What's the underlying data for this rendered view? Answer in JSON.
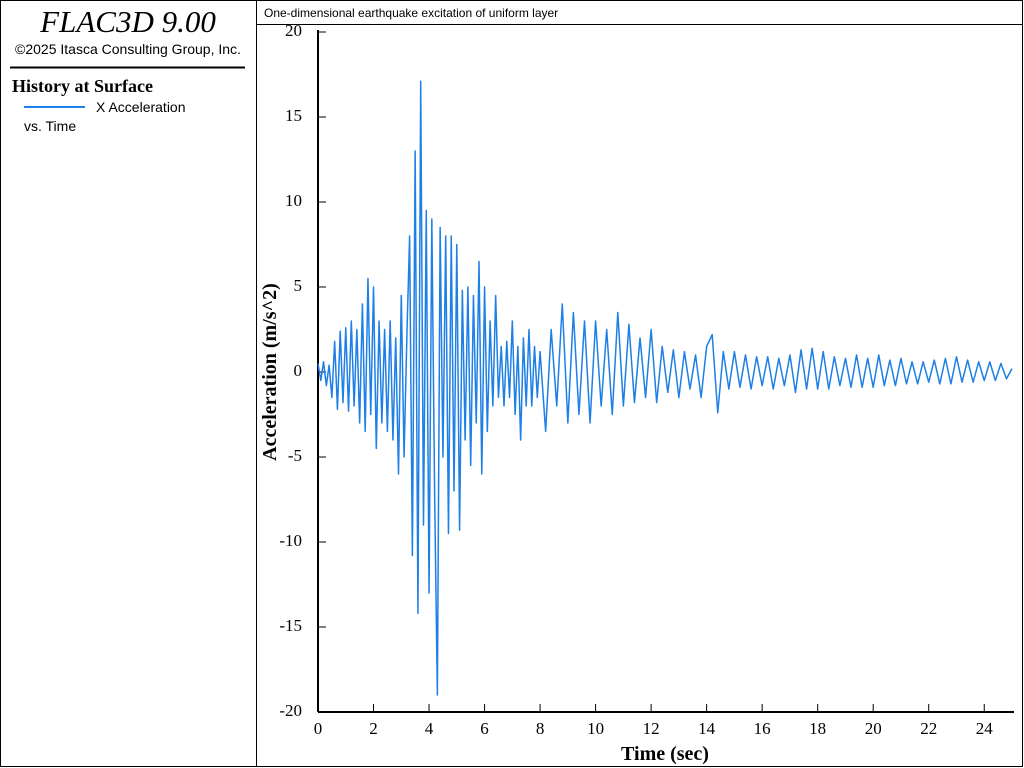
{
  "app": {
    "name": "FLAC3D 9.00",
    "copyright": "©2025 Itasca Consulting Group, Inc.",
    "history_heading": "History at Surface",
    "versus": "vs. Time"
  },
  "chart_data": {
    "type": "line",
    "title": "One-dimensional earthquake excitation of uniform layer",
    "xlabel": "Time (sec)",
    "ylabel": "Acceleration (m/s^2)",
    "x": [
      0,
      0.1,
      0.2,
      0.3,
      0.4,
      0.5,
      0.6,
      0.7,
      0.8,
      0.9,
      1,
      1.1,
      1.2,
      1.3,
      1.4,
      1.5,
      1.6,
      1.7,
      1.8,
      1.9,
      2,
      2.1,
      2.2,
      2.3,
      2.4,
      2.5,
      2.6,
      2.7,
      2.8,
      2.9,
      3,
      3.1,
      3.2,
      3.3,
      3.4,
      3.5,
      3.6,
      3.7,
      3.8,
      3.9,
      4,
      4.1,
      4.2,
      4.3,
      4.4,
      4.5,
      4.6,
      4.7,
      4.8,
      4.9,
      5,
      5.1,
      5.2,
      5.3,
      5.4,
      5.5,
      5.6,
      5.7,
      5.8,
      5.9,
      6,
      6.1,
      6.2,
      6.3,
      6.4,
      6.5,
      6.6,
      6.7,
      6.8,
      6.9,
      7,
      7.1,
      7.2,
      7.3,
      7.4,
      7.5,
      7.6,
      7.7,
      7.8,
      7.9,
      8,
      8.2,
      8.4,
      8.6,
      8.8,
      9,
      9.2,
      9.4,
      9.6,
      9.8,
      10,
      10.2,
      10.4,
      10.6,
      10.8,
      11,
      11.2,
      11.4,
      11.6,
      11.8,
      12,
      12.2,
      12.4,
      12.6,
      12.8,
      13,
      13.2,
      13.4,
      13.6,
      13.8,
      14,
      14.2,
      14.4,
      14.6,
      14.8,
      15,
      15.2,
      15.4,
      15.6,
      15.8,
      16,
      16.2,
      16.4,
      16.6,
      16.8,
      17,
      17.2,
      17.4,
      17.6,
      17.8,
      18,
      18.2,
      18.4,
      18.6,
      18.8,
      19,
      19.2,
      19.4,
      19.6,
      19.8,
      20,
      20.2,
      20.4,
      20.6,
      20.8,
      21,
      21.2,
      21.4,
      21.6,
      21.8,
      22,
      22.2,
      22.4,
      22.6,
      22.8,
      23,
      23.2,
      23.4,
      23.6,
      23.8,
      24,
      24.2,
      24.4,
      24.6,
      24.8,
      25
    ],
    "series": [
      {
        "name": "X Acceleration",
        "color": "#1e7fe6",
        "values": [
          0.5,
          -0.5,
          0.6,
          -0.8,
          0.4,
          -1.5,
          1.8,
          -2.2,
          2.4,
          -1.8,
          2.6,
          -2.3,
          3.0,
          -2.0,
          2.5,
          -3.0,
          4.0,
          -3.5,
          5.5,
          -2.5,
          5.0,
          -4.5,
          3.0,
          -3.0,
          2.5,
          -3.5,
          3.0,
          -4.0,
          2.0,
          -6.0,
          4.5,
          -5.0,
          2.0,
          8.0,
          -10.8,
          13.0,
          -14.2,
          17.1,
          -9.0,
          9.5,
          -13.0,
          9.0,
          -7.0,
          -19.0,
          8.5,
          -5.0,
          8.0,
          -9.5,
          8.0,
          -7.0,
          7.5,
          -9.3,
          4.8,
          -4.0,
          5.0,
          -5.5,
          4.5,
          -3.0,
          6.5,
          -6.0,
          5.0,
          -3.5,
          3.0,
          -2.0,
          4.5,
          -1.5,
          1.5,
          -2.0,
          1.8,
          -1.5,
          3.0,
          -2.5,
          1.5,
          -4.0,
          2.0,
          -2.0,
          2.5,
          -2.0,
          1.5,
          -1.5,
          1.2,
          -3.5,
          2.5,
          -2.0,
          4.0,
          -3.0,
          3.5,
          -2.5,
          3.0,
          -3.0,
          3.0,
          -2.0,
          2.5,
          -2.5,
          3.5,
          -2.0,
          2.8,
          -1.8,
          2.0,
          -1.5,
          2.5,
          -1.8,
          1.5,
          -1.2,
          1.3,
          -1.5,
          1.2,
          -1.0,
          1.0,
          -1.5,
          1.5,
          2.2,
          -2.4,
          1.2,
          -1.0,
          1.2,
          -0.9,
          1.0,
          -1.0,
          0.9,
          -0.8,
          0.9,
          -1.0,
          0.8,
          -0.8,
          1.0,
          -1.2,
          1.3,
          -1.0,
          1.4,
          -1.0,
          1.2,
          -1.0,
          0.9,
          -0.8,
          0.8,
          -0.9,
          1.0,
          -0.9,
          0.8,
          -0.9,
          1.0,
          -0.8,
          0.7,
          -0.8,
          0.8,
          -0.7,
          0.6,
          -0.7,
          0.6,
          -0.6,
          0.7,
          -0.7,
          0.8,
          -0.7,
          0.9,
          -0.6,
          0.7,
          -0.6,
          0.6,
          -0.5,
          0.6,
          -0.5,
          0.5,
          -0.4,
          0.2
        ]
      }
    ],
    "xlim": [
      0,
      25
    ],
    "xticks": [
      0,
      2,
      4,
      6,
      8,
      10,
      12,
      14,
      16,
      18,
      20,
      22,
      24
    ],
    "ylim": [
      -20,
      20
    ],
    "yticks": [
      -20,
      -15,
      -10,
      -5,
      0,
      5,
      10,
      15,
      20
    ]
  }
}
